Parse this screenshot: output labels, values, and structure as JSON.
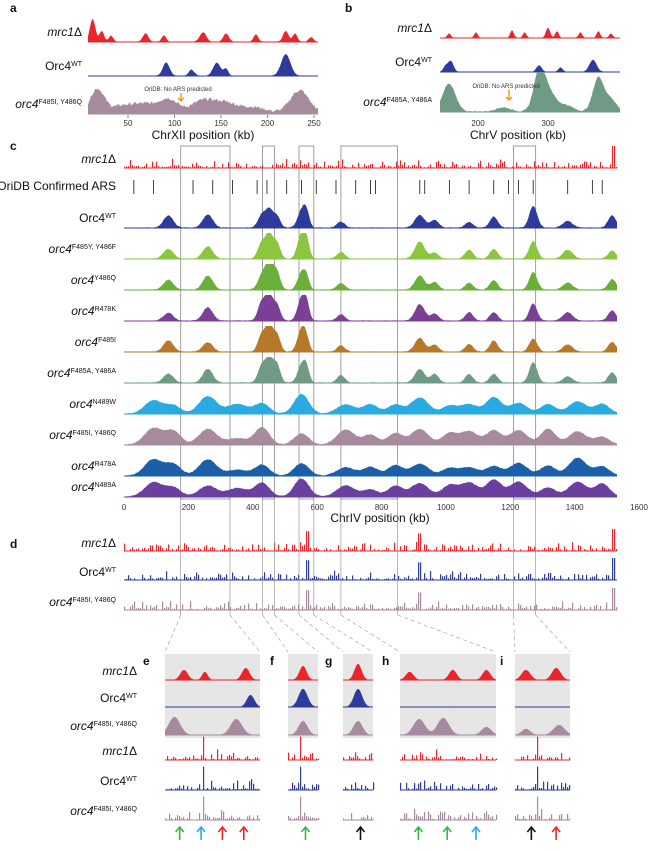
{
  "panels": {
    "a": {
      "letter": "a",
      "axis_title": "ChrXII position (kb)",
      "ticks": [
        "50",
        "100",
        "150",
        "200",
        "250"
      ],
      "tracks": [
        {
          "label": "mrc1Δ",
          "base": "mrc1",
          "sup": "Δ",
          "color": "#e8262b"
        },
        {
          "label": "Orc4WT",
          "base": "Orc4",
          "sup": "WT",
          "color": "#2c3b9c"
        },
        {
          "label": "orc4F485I, Y486Q",
          "base": "orc4",
          "sup": "F485I, Y486Q",
          "color": "#a88a9e"
        }
      ],
      "annotation": "OriDB: No ARS predicted"
    },
    "b": {
      "letter": "b",
      "axis_title": "ChrV position (kb)",
      "ticks": [
        "200",
        "300"
      ],
      "tracks": [
        {
          "label": "mrc1Δ",
          "base": "mrc1",
          "sup": "Δ",
          "color": "#e8262b"
        },
        {
          "label": "Orc4WT",
          "base": "Orc4",
          "sup": "WT",
          "color": "#2c3b9c"
        },
        {
          "label": "orc4F485A, Y486A",
          "base": "orc4",
          "sup": "F485A, Y486A",
          "color": "#6f9a86"
        }
      ],
      "annotation": "OriDB: No ARS predicted"
    },
    "c": {
      "letter": "c",
      "axis_title": "ChrIV position (kb)",
      "ticks": [
        "0",
        "200",
        "400",
        "600",
        "800",
        "1000",
        "1200",
        "1400",
        "1600"
      ],
      "ars_label": "OriDB Confirmed ARS",
      "tracks": [
        {
          "label": "mrc1Δ",
          "base": "mrc1",
          "sup": "Δ",
          "color": "#e8262b",
          "italic": true
        },
        {
          "label": "Orc4WT",
          "base": "Orc4",
          "sup": "WT",
          "color": "#2c3b9c",
          "italic": false
        },
        {
          "label": "orc4F485Y, Y486F",
          "base": "orc4",
          "sup": "F485Y, Y486F",
          "color": "#8cc63f",
          "italic": true
        },
        {
          "label": "orc4Y486Q",
          "base": "orc4",
          "sup": "Y486Q",
          "color": "#6aaf3a",
          "italic": true
        },
        {
          "label": "orc4R478K",
          "base": "orc4",
          "sup": "R478K",
          "color": "#7b3f98",
          "italic": true
        },
        {
          "label": "orc4F485I",
          "base": "orc4",
          "sup": "F485I",
          "color": "#b8782a",
          "italic": true
        },
        {
          "label": "orc4F485A, Y486A",
          "base": "orc4",
          "sup": "F485A, Y486A",
          "color": "#6f9a86",
          "italic": true
        },
        {
          "label": "orc4N489W",
          "base": "orc4",
          "sup": "N489W",
          "color": "#29abe2",
          "italic": true
        },
        {
          "label": "orc4F485I, Y486Q",
          "base": "orc4",
          "sup": "F485I, Y486Q",
          "color": "#a88a9e",
          "italic": true
        },
        {
          "label": "orc4R478A",
          "base": "orc4",
          "sup": "R478A",
          "color": "#1b5fa8",
          "italic": true
        },
        {
          "label": "orc4N489A",
          "base": "orc4",
          "sup": "N489A",
          "color": "#6a3fa0",
          "italic": true
        }
      ]
    },
    "d": {
      "letter": "d",
      "tracks": [
        {
          "label": "mrc1Δ",
          "base": "mrc1",
          "sup": "Δ",
          "color": "#e8262b",
          "italic": true
        },
        {
          "label": "Orc4WT",
          "base": "Orc4",
          "sup": "WT",
          "color": "#2c3b9c",
          "italic": false
        },
        {
          "label": "orc4F485I, Y486Q",
          "base": "orc4",
          "sup": "F485I, Y486Q",
          "color": "#a88a9e",
          "italic": true
        }
      ]
    },
    "zoom": {
      "letters": [
        "e",
        "f",
        "g",
        "h",
        "i"
      ],
      "tracks": [
        {
          "label": "mrc1Δ",
          "base": "mrc1",
          "sup": "Δ",
          "color": "#e8262b",
          "italic": true
        },
        {
          "label": "Orc4WT",
          "base": "Orc4",
          "sup": "WT",
          "color": "#2c3b9c",
          "italic": false
        },
        {
          "label": "orc4F485I, Y486Q",
          "base": "orc4",
          "sup": "F485I, Y486Q",
          "color": "#a88a9e",
          "italic": true
        },
        {
          "label": "mrc1Δ",
          "base": "mrc1",
          "sup": "Δ",
          "color": "#e8262b",
          "italic": true
        },
        {
          "label": "Orc4WT",
          "base": "Orc4",
          "sup": "WT",
          "color": "#2c3b9c",
          "italic": false
        },
        {
          "label": "orc4F485I, Y486Q",
          "base": "orc4",
          "sup": "F485I, Y486Q",
          "color": "#a88a9e",
          "italic": true
        }
      ],
      "arrows": [
        {
          "panel": "e",
          "colors": [
            "#39b54a",
            "#29abe2",
            "#e8262b",
            "#e8262b"
          ]
        },
        {
          "panel": "f",
          "colors": [
            "#39b54a"
          ]
        },
        {
          "panel": "g",
          "colors": [
            "#111111"
          ]
        },
        {
          "panel": "h",
          "colors": [
            "#39b54a",
            "#39b54a",
            "#29abe2"
          ]
        },
        {
          "panel": "i",
          "colors": [
            "#111111",
            "#e8262b"
          ]
        }
      ]
    }
  }
}
